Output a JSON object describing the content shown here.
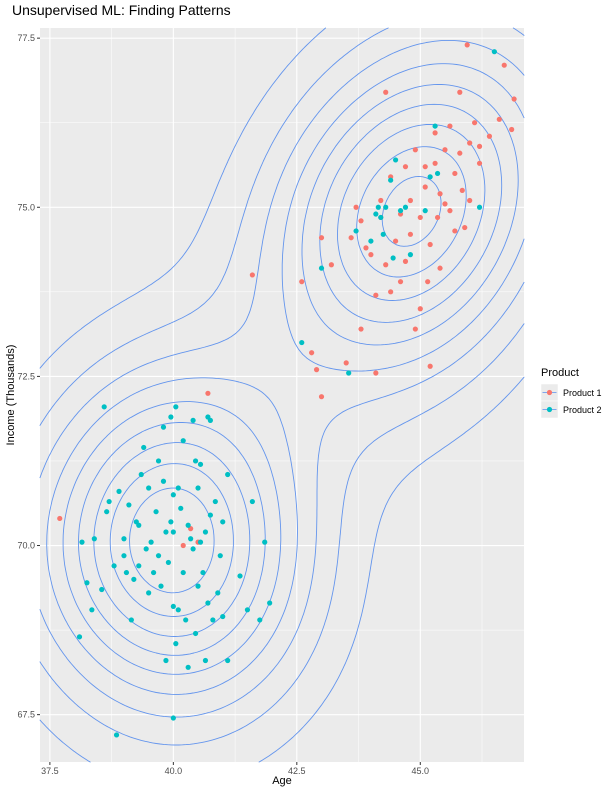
{
  "chart_data": {
    "type": "scatter",
    "title": "Unsupervised ML: Finding Patterns",
    "xlabel": "Age",
    "ylabel": "Income (Thousands)",
    "xlim": [
      37.3,
      47.1
    ],
    "ylim": [
      66.8,
      77.65
    ],
    "x_ticks": [
      37.5,
      40.0,
      42.5,
      45.0
    ],
    "x_tick_labels": [
      "37.5",
      "40.0",
      "42.5",
      "45.0"
    ],
    "y_ticks": [
      67.5,
      70.0,
      72.5,
      75.0,
      77.5
    ],
    "y_tick_labels": [
      "67.5",
      "70.0",
      "72.5",
      "75.0",
      "77.5"
    ],
    "grid": true,
    "background": "#ebebeb",
    "legend": {
      "title": "Product",
      "position": "right"
    },
    "series": [
      {
        "name": "Product 1",
        "color": "#f8766d",
        "points": [
          [
            37.7,
            70.4
          ],
          [
            40.2,
            70.0
          ],
          [
            40.5,
            70.05
          ],
          [
            40.7,
            72.25
          ],
          [
            40.35,
            70.25
          ],
          [
            41.6,
            74.0
          ],
          [
            42.6,
            73.9
          ],
          [
            42.8,
            72.85
          ],
          [
            42.9,
            72.6
          ],
          [
            43.0,
            74.55
          ],
          [
            43.0,
            72.2
          ],
          [
            43.2,
            74.15
          ],
          [
            43.5,
            72.7
          ],
          [
            43.8,
            73.2
          ],
          [
            43.8,
            74.8
          ],
          [
            43.7,
            75.0
          ],
          [
            43.6,
            74.55
          ],
          [
            43.9,
            74.4
          ],
          [
            44.0,
            74.3
          ],
          [
            44.1,
            73.7
          ],
          [
            44.1,
            72.55
          ],
          [
            44.2,
            75.1
          ],
          [
            44.2,
            74.85
          ],
          [
            44.3,
            74.15
          ],
          [
            44.4,
            73.75
          ],
          [
            44.3,
            76.7
          ],
          [
            44.4,
            75.45
          ],
          [
            44.5,
            74.5
          ],
          [
            44.6,
            74.9
          ],
          [
            44.6,
            73.9
          ],
          [
            44.7,
            75.6
          ],
          [
            44.7,
            74.2
          ],
          [
            44.8,
            75.1
          ],
          [
            44.8,
            74.6
          ],
          [
            44.9,
            75.85
          ],
          [
            44.9,
            73.2
          ],
          [
            45.0,
            74.85
          ],
          [
            45.0,
            73.5
          ],
          [
            45.1,
            75.3
          ],
          [
            45.1,
            75.6
          ],
          [
            45.15,
            73.9
          ],
          [
            45.2,
            74.45
          ],
          [
            45.2,
            72.65
          ],
          [
            45.3,
            76.1
          ],
          [
            45.3,
            75.65
          ],
          [
            45.35,
            74.85
          ],
          [
            45.4,
            75.2
          ],
          [
            45.4,
            74.1
          ],
          [
            45.5,
            75.85
          ],
          [
            45.5,
            75.05
          ],
          [
            45.6,
            76.2
          ],
          [
            45.6,
            74.95
          ],
          [
            45.7,
            75.5
          ],
          [
            45.7,
            74.65
          ],
          [
            45.8,
            76.7
          ],
          [
            45.8,
            75.8
          ],
          [
            45.85,
            75.25
          ],
          [
            45.9,
            74.7
          ],
          [
            45.95,
            77.4
          ],
          [
            46.0,
            75.95
          ],
          [
            46.0,
            75.1
          ],
          [
            46.1,
            76.25
          ],
          [
            46.2,
            75.9
          ],
          [
            46.2,
            75.65
          ],
          [
            46.4,
            76.05
          ],
          [
            46.6,
            76.3
          ],
          [
            46.7,
            77.1
          ],
          [
            46.85,
            76.15
          ],
          [
            46.9,
            76.6
          ]
        ]
      },
      {
        "name": "Product 2",
        "color": "#00bfc4",
        "points": [
          [
            38.1,
            68.65
          ],
          [
            38.15,
            70.05
          ],
          [
            38.25,
            69.45
          ],
          [
            38.35,
            69.05
          ],
          [
            38.4,
            70.1
          ],
          [
            38.55,
            69.35
          ],
          [
            38.6,
            72.05
          ],
          [
            38.65,
            70.5
          ],
          [
            38.7,
            70.65
          ],
          [
            38.8,
            69.7
          ],
          [
            38.85,
            67.2
          ],
          [
            38.9,
            70.8
          ],
          [
            39.0,
            70.1
          ],
          [
            39.0,
            69.85
          ],
          [
            39.05,
            69.6
          ],
          [
            39.1,
            70.6
          ],
          [
            39.15,
            68.9
          ],
          [
            39.2,
            69.5
          ],
          [
            39.25,
            70.35
          ],
          [
            39.3,
            70.3
          ],
          [
            39.3,
            69.7
          ],
          [
            39.35,
            71.05
          ],
          [
            39.4,
            71.45
          ],
          [
            39.45,
            69.95
          ],
          [
            39.5,
            69.3
          ],
          [
            39.5,
            70.85
          ],
          [
            39.55,
            70.05
          ],
          [
            39.6,
            69.6
          ],
          [
            39.65,
            70.5
          ],
          [
            39.7,
            71.25
          ],
          [
            39.7,
            69.85
          ],
          [
            39.75,
            69.4
          ],
          [
            39.8,
            71.75
          ],
          [
            39.8,
            70.95
          ],
          [
            39.85,
            68.3
          ],
          [
            39.85,
            70.2
          ],
          [
            39.9,
            69.75
          ],
          [
            39.95,
            70.35
          ],
          [
            39.95,
            71.9
          ],
          [
            40.0,
            70.75
          ],
          [
            40.0,
            70.2
          ],
          [
            40.0,
            69.1
          ],
          [
            40.05,
            72.05
          ],
          [
            40.05,
            68.55
          ],
          [
            40.1,
            70.85
          ],
          [
            40.1,
            69.05
          ],
          [
            40.15,
            70.55
          ],
          [
            40.2,
            71.55
          ],
          [
            40.2,
            69.6
          ],
          [
            40.25,
            68.9
          ],
          [
            40.3,
            70.3
          ],
          [
            40.3,
            68.2
          ],
          [
            40.35,
            70.1
          ],
          [
            40.4,
            71.85
          ],
          [
            40.4,
            69.95
          ],
          [
            40.45,
            71.25
          ],
          [
            40.45,
            68.7
          ],
          [
            40.5,
            70.85
          ],
          [
            40.5,
            69.4
          ],
          [
            40.55,
            71.2
          ],
          [
            40.55,
            70.05
          ],
          [
            40.6,
            69.6
          ],
          [
            40.65,
            70.2
          ],
          [
            40.65,
            68.3
          ],
          [
            40.7,
            71.9
          ],
          [
            40.7,
            69.15
          ],
          [
            40.75,
            71.85
          ],
          [
            40.75,
            70.45
          ],
          [
            40.8,
            68.9
          ],
          [
            40.85,
            70.65
          ],
          [
            40.9,
            69.3
          ],
          [
            40.95,
            69.85
          ],
          [
            41.0,
            68.95
          ],
          [
            41.0,
            70.35
          ],
          [
            41.1,
            71.05
          ],
          [
            41.1,
            68.3
          ],
          [
            41.35,
            69.55
          ],
          [
            41.5,
            69.05
          ],
          [
            41.6,
            70.65
          ],
          [
            41.75,
            68.9
          ],
          [
            41.85,
            70.05
          ],
          [
            41.95,
            69.15
          ],
          [
            40.0,
            67.45
          ],
          [
            42.6,
            73.0
          ],
          [
            43.0,
            74.1
          ],
          [
            43.55,
            72.55
          ],
          [
            43.7,
            74.65
          ],
          [
            44.0,
            74.5
          ],
          [
            44.1,
            74.9
          ],
          [
            44.15,
            75.0
          ],
          [
            44.2,
            74.85
          ],
          [
            44.25,
            74.6
          ],
          [
            44.3,
            75.0
          ],
          [
            44.4,
            75.4
          ],
          [
            44.45,
            74.25
          ],
          [
            44.5,
            75.7
          ],
          [
            44.6,
            74.95
          ],
          [
            44.7,
            75.0
          ],
          [
            44.8,
            74.3
          ],
          [
            45.1,
            74.95
          ],
          [
            45.2,
            75.45
          ],
          [
            45.3,
            76.2
          ],
          [
            45.35,
            75.5
          ],
          [
            46.2,
            75.0
          ],
          [
            46.5,
            77.3
          ]
        ]
      }
    ],
    "contour_line_color": "#6495ed"
  }
}
